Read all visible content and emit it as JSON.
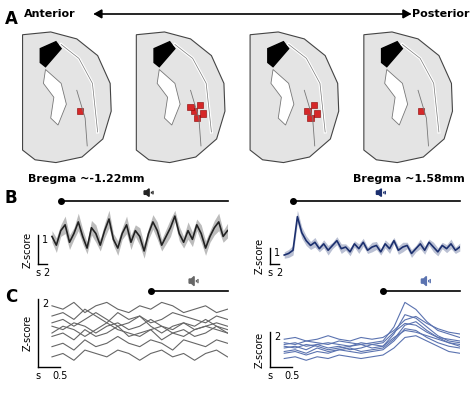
{
  "panel_labels": [
    "A",
    "B",
    "C"
  ],
  "diagram": {
    "direction_labels": [
      "Anterior",
      "Posterior"
    ],
    "bregma_labels": [
      "Bregma ~-1.22mm",
      "Bregma ~1.58mm"
    ],
    "sites_per_section": [
      1,
      5,
      4,
      1
    ],
    "site_color": "#d62728"
  },
  "chart_data": [
    {
      "type": "line",
      "color": "#222222",
      "tick_labels": false,
      "stimulus": {
        "onset": 0,
        "offset": 38
      },
      "scale_bar": {
        "x": 2,
        "y": 1,
        "x_unit": "s",
        "y_label": "Z-score"
      },
      "x": [
        -2,
        -1,
        0,
        1,
        2,
        3,
        4,
        5,
        6,
        7,
        8,
        9,
        10,
        11,
        12,
        13,
        14,
        15,
        16,
        17,
        18,
        19,
        20,
        21,
        22,
        23,
        24,
        25,
        26,
        27,
        28,
        29,
        30,
        31,
        32,
        33,
        34,
        35,
        36,
        37,
        38
      ],
      "series": [
        {
          "values": [
            0.1,
            -0.2,
            0.3,
            0.5,
            -0.1,
            0.2,
            0.6,
            0.1,
            -0.3,
            0.4,
            0.2,
            -0.2,
            0.3,
            0.7,
            0.0,
            -0.3,
            0.2,
            0.5,
            -0.1,
            0.3,
            0.1,
            -0.4,
            0.2,
            0.6,
            0.3,
            -0.2,
            0.1,
            0.4,
            0.8,
            0.2,
            -0.1,
            0.3,
            0.0,
            0.5,
            0.2,
            -0.3,
            0.1,
            0.4,
            0.6,
            0.1,
            0.3
          ],
          "error": [
            0.2,
            0.25,
            0.2,
            0.3,
            0.25,
            0.2,
            0.3,
            0.25,
            0.2,
            0.25,
            0.3,
            0.2,
            0.25,
            0.3,
            0.2,
            0.25,
            0.2,
            0.3,
            0.25,
            0.2,
            0.3,
            0.25,
            0.2,
            0.25,
            0.3,
            0.2,
            0.25,
            0.3,
            0.2,
            0.25,
            0.2,
            0.3,
            0.25,
            0.2,
            0.3,
            0.25,
            0.2,
            0.25,
            0.3,
            0.2,
            0.25
          ]
        }
      ]
    },
    {
      "type": "line",
      "color": "#1b2f6e",
      "tick_labels": false,
      "stimulus": {
        "onset": 0,
        "offset": 38
      },
      "scale_bar": {
        "x": 2,
        "y": 1,
        "x_unit": "s",
        "y_label": "Z-score"
      },
      "x": [
        -2,
        -1,
        0,
        1,
        2,
        3,
        4,
        5,
        6,
        7,
        8,
        9,
        10,
        11,
        12,
        13,
        14,
        15,
        16,
        17,
        18,
        19,
        20,
        21,
        22,
        23,
        24,
        25,
        26,
        27,
        28,
        29,
        30,
        31,
        32,
        33,
        34,
        35,
        36,
        37,
        38
      ],
      "series": [
        {
          "values": [
            0.0,
            0.1,
            0.3,
            2.4,
            1.4,
            0.9,
            0.6,
            0.8,
            0.4,
            0.7,
            0.3,
            0.6,
            0.9,
            0.4,
            0.5,
            0.2,
            0.7,
            0.4,
            0.8,
            0.3,
            0.5,
            0.6,
            0.2,
            0.7,
            0.4,
            0.9,
            0.3,
            0.5,
            0.6,
            0.1,
            0.4,
            0.7,
            0.3,
            0.8,
            0.5,
            0.2,
            0.6,
            0.4,
            0.7,
            0.3,
            0.5
          ],
          "error": [
            0.2,
            0.25,
            0.3,
            0.4,
            0.35,
            0.3,
            0.25,
            0.3,
            0.2,
            0.25,
            0.3,
            0.2,
            0.25,
            0.3,
            0.2,
            0.25,
            0.2,
            0.3,
            0.25,
            0.2,
            0.3,
            0.25,
            0.2,
            0.25,
            0.3,
            0.2,
            0.25,
            0.3,
            0.2,
            0.25,
            0.2,
            0.3,
            0.25,
            0.2,
            0.3,
            0.25,
            0.2,
            0.25,
            0.3,
            0.2,
            0.25
          ]
        }
      ]
    },
    {
      "type": "line",
      "color": "#666666",
      "tick_labels": false,
      "stimulus": {
        "onset": 0,
        "offset": 1.75
      },
      "scale_bar": {
        "x": 0.5,
        "y": 2,
        "x_unit": "s",
        "y_label": "Z-score"
      },
      "x": [
        -2.25,
        -2.0,
        -1.75,
        -1.5,
        -1.25,
        -1.0,
        -0.75,
        -0.5,
        -0.25,
        0.0,
        0.25,
        0.5,
        0.75,
        1.0,
        1.25,
        1.5,
        1.75
      ],
      "series": [
        {
          "values": [
            0.5,
            0.6,
            0.4,
            0.7,
            0.5,
            0.3,
            0.6,
            0.4,
            0.5,
            0.3,
            0.4,
            0.6,
            0.5,
            0.4,
            0.3,
            0.5,
            0.4
          ]
        },
        {
          "values": [
            0.2,
            0.1,
            0.3,
            0.2,
            0.0,
            0.2,
            0.3,
            0.1,
            0.2,
            0.4,
            0.2,
            0.1,
            0.3,
            0.2,
            0.4,
            0.2,
            0.1
          ]
        },
        {
          "values": [
            -0.1,
            0.0,
            -0.2,
            0.1,
            -0.1,
            0.0,
            0.2,
            -0.1,
            0.0,
            0.1,
            -0.2,
            0.0,
            0.1,
            -0.1,
            0.0,
            0.2,
            0.0
          ]
        },
        {
          "values": [
            -0.4,
            -0.3,
            -0.5,
            -0.2,
            -0.4,
            -0.3,
            -0.1,
            -0.3,
            -0.4,
            -0.2,
            -0.3,
            -0.5,
            -0.2,
            -0.3,
            -0.4,
            -0.2,
            -0.3
          ]
        },
        {
          "values": [
            0.8,
            0.7,
            0.9,
            0.6,
            0.8,
            0.9,
            0.7,
            0.6,
            0.8,
            0.7,
            0.9,
            0.8,
            0.6,
            0.7,
            0.8,
            0.6,
            0.7
          ]
        },
        {
          "values": [
            -0.7,
            -0.6,
            -0.8,
            -0.5,
            -0.6,
            -0.7,
            -0.5,
            -0.6,
            -0.8,
            -0.6,
            -0.5,
            -0.7,
            -0.6,
            -0.8,
            -0.6,
            -0.5,
            -0.7
          ]
        },
        {
          "values": [
            0.0,
            0.2,
            0.1,
            -0.1,
            0.1,
            0.3,
            0.1,
            0.0,
            -0.1,
            0.1,
            0.2,
            0.0,
            -0.1,
            0.1,
            0.2,
            0.1,
            0.0
          ]
        },
        {
          "values": [
            0.3,
            0.4,
            0.2,
            0.4,
            0.6,
            0.4,
            0.2,
            0.3,
            0.5,
            0.2,
            0.0,
            0.2,
            0.3,
            0.1,
            0.2,
            0.3,
            0.2
          ]
        }
      ]
    },
    {
      "type": "line",
      "color": "#5b73b0",
      "tick_labels": false,
      "stimulus": {
        "onset": 0,
        "offset": 1.75
      },
      "scale_bar": {
        "x": 0.5,
        "y": 2,
        "x_unit": "s",
        "y_label": "Z-score"
      },
      "x": [
        -2.25,
        -2.0,
        -1.75,
        -1.5,
        -1.25,
        -1.0,
        -0.75,
        -0.5,
        -0.25,
        0.0,
        0.25,
        0.5,
        0.75,
        1.0,
        1.25,
        1.5,
        1.75
      ],
      "series": [
        {
          "values": [
            0.3,
            0.2,
            0.4,
            0.3,
            0.2,
            0.4,
            0.3,
            0.2,
            0.3,
            0.4,
            1.2,
            2.6,
            2.2,
            1.5,
            1.0,
            0.8,
            0.6
          ]
        },
        {
          "values": [
            0.0,
            0.1,
            -0.1,
            0.2,
            0.0,
            0.1,
            -0.1,
            0.0,
            0.2,
            0.1,
            0.8,
            1.9,
            1.7,
            1.2,
            0.7,
            0.4,
            0.3
          ]
        },
        {
          "values": [
            0.5,
            0.6,
            0.4,
            0.5,
            0.7,
            0.5,
            0.4,
            0.6,
            0.5,
            0.6,
            1.0,
            1.6,
            1.8,
            1.4,
            1.1,
            0.9,
            0.8
          ]
        },
        {
          "values": [
            -0.3,
            -0.2,
            -0.4,
            -0.2,
            -0.3,
            -0.1,
            -0.2,
            -0.3,
            -0.2,
            -0.1,
            0.4,
            1.1,
            1.0,
            0.6,
            0.3,
            0.1,
            0.0
          ]
        },
        {
          "values": [
            -0.6,
            -0.5,
            -0.7,
            -0.5,
            -0.6,
            -0.4,
            -0.5,
            -0.6,
            -0.5,
            -0.4,
            0.0,
            0.6,
            0.7,
            0.4,
            0.1,
            -0.2,
            -0.3
          ]
        },
        {
          "values": [
            0.2,
            0.3,
            0.1,
            0.2,
            0.3,
            0.2,
            0.1,
            0.3,
            0.2,
            0.3,
            0.9,
            1.4,
            1.3,
            0.9,
            0.6,
            0.5,
            0.4
          ]
        },
        {
          "values": [
            -0.2,
            -0.1,
            -0.3,
            0.0,
            -0.2,
            -0.1,
            0.0,
            -0.2,
            -0.1,
            0.0,
            0.5,
            1.3,
            1.5,
            1.0,
            0.6,
            0.3,
            0.1
          ]
        },
        {
          "values": [
            0.1,
            0.0,
            0.2,
            0.1,
            -0.1,
            0.0,
            0.1,
            0.2,
            0.0,
            0.1,
            0.6,
            1.0,
            0.9,
            0.7,
            0.5,
            0.3,
            0.2
          ]
        }
      ]
    }
  ]
}
